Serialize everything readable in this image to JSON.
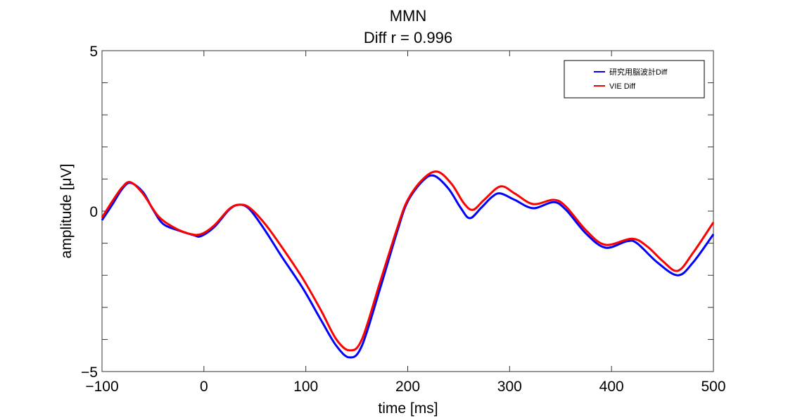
{
  "chart_data": {
    "type": "line",
    "title": "MMN",
    "subtitle": "Diff r = 0.996",
    "xlabel": "time [ms]",
    "ylabel": "amplitude [μV]",
    "xlim": [
      -100,
      500
    ],
    "ylim": [
      -5,
      5
    ],
    "xticks": [
      -100,
      0,
      100,
      200,
      300,
      400,
      500
    ],
    "xtick_labels": [
      "−100",
      "0",
      "100",
      "200",
      "300",
      "400",
      "500"
    ],
    "yticks": [
      -5,
      0,
      5
    ],
    "ytick_labels": [
      "−5",
      "0",
      "5"
    ],
    "yminor_ticks": [
      -4,
      -3,
      -2,
      -1,
      1,
      2,
      3,
      4
    ],
    "grid": false,
    "legend_position": "top-right",
    "series": [
      {
        "name": "研究用脳波計Diff",
        "color": "#0000ff",
        "x": [
          -100,
          -90,
          -80,
          -72,
          -60,
          -50,
          -40,
          -25,
          -10,
          -3,
          10,
          25,
          35,
          45,
          60,
          76,
          97,
          115,
          130,
          143,
          155,
          173,
          190,
          200,
          215,
          226,
          240,
          252,
          261,
          272,
          283,
          291,
          305,
          323,
          343,
          355,
          375,
          394,
          415,
          425,
          445,
          465,
          480,
          500
        ],
        "y": [
          -0.28,
          0.2,
          0.7,
          0.88,
          0.6,
          0.05,
          -0.4,
          -0.6,
          -0.75,
          -0.78,
          -0.5,
          0.05,
          0.2,
          0.05,
          -0.6,
          -1.4,
          -2.4,
          -3.4,
          -4.2,
          -4.56,
          -4.2,
          -2.4,
          -0.6,
          0.3,
          0.95,
          1.1,
          0.7,
          0.1,
          -0.22,
          0.1,
          0.45,
          0.55,
          0.35,
          0.09,
          0.28,
          0.05,
          -0.7,
          -1.14,
          -0.94,
          -1.0,
          -1.6,
          -2.0,
          -1.6,
          -0.72
        ]
      },
      {
        "name": "VIE Diff",
        "color": "#ff0000",
        "x": [
          -100,
          -90,
          -80,
          -72,
          -60,
          -45,
          -30,
          -15,
          -3,
          10,
          25,
          35,
          45,
          60,
          76,
          97,
          115,
          130,
          143,
          155,
          173,
          190,
          200,
          215,
          229,
          243,
          255,
          264,
          275,
          291,
          305,
          323,
          343,
          355,
          375,
          394,
          420,
          435,
          450,
          465,
          480,
          500
        ],
        "y": [
          -0.2,
          0.3,
          0.75,
          0.9,
          0.55,
          -0.15,
          -0.5,
          -0.7,
          -0.72,
          -0.45,
          0.07,
          0.2,
          0.1,
          -0.4,
          -1.1,
          -2.1,
          -3.1,
          -4.0,
          -4.34,
          -4.0,
          -2.2,
          -0.5,
          0.35,
          1.0,
          1.23,
          0.85,
          0.25,
          0.04,
          0.35,
          0.77,
          0.55,
          0.22,
          0.35,
          0.15,
          -0.6,
          -1.05,
          -0.86,
          -1.1,
          -1.55,
          -1.86,
          -1.3,
          -0.35
        ]
      }
    ]
  }
}
